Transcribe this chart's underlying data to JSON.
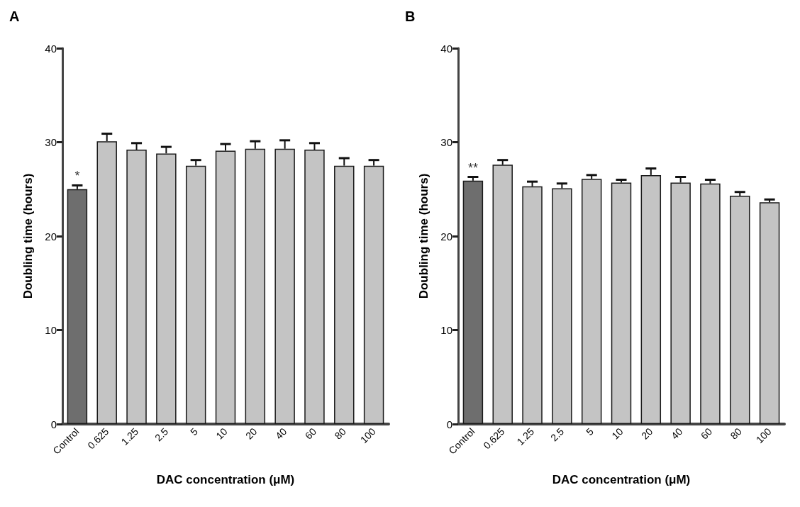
{
  "chart_data": [
    {
      "type": "bar",
      "title": "A",
      "xlabel": "DAC concentration (μM)",
      "ylabel": "Doubling time (hours)",
      "categories": [
        "Control",
        "0.625",
        "1.25",
        "2.5",
        "5",
        "10",
        "20",
        "40",
        "60",
        "80",
        "100"
      ],
      "values": [
        25.0,
        30.1,
        29.2,
        28.8,
        27.5,
        29.1,
        29.3,
        29.3,
        29.2,
        27.5,
        27.5
      ],
      "errors": [
        [
          25.0,
          25.4
        ],
        [
          30.1,
          30.9
        ],
        [
          29.2,
          29.9
        ],
        [
          28.8,
          29.5
        ],
        [
          27.5,
          28.1
        ],
        [
          29.1,
          29.8
        ],
        [
          29.3,
          30.1
        ],
        [
          29.3,
          30.2
        ],
        [
          29.2,
          29.9
        ],
        [
          27.5,
          28.3
        ],
        [
          27.5,
          28.1
        ]
      ],
      "colors": [
        "#6e6e6e",
        "#c4c4c4",
        "#c4c4c4",
        "#c4c4c4",
        "#c4c4c4",
        "#c4c4c4",
        "#c4c4c4",
        "#c4c4c4",
        "#c4c4c4",
        "#c4c4c4",
        "#c4c4c4"
      ],
      "ylim": [
        0,
        40
      ],
      "yticks": [
        0,
        10,
        20,
        30,
        40
      ],
      "grid": false,
      "annotations": [
        {
          "text": "*",
          "x": "Control",
          "y": 25.4
        }
      ]
    },
    {
      "type": "bar",
      "title": "B",
      "xlabel": "DAC concentration (μM)",
      "ylabel": "Doubling time (hours)",
      "categories": [
        "Control",
        "0.625",
        "1.25",
        "2.5",
        "5",
        "10",
        "20",
        "40",
        "60",
        "80",
        "100"
      ],
      "values": [
        25.9,
        27.6,
        25.3,
        25.1,
        26.1,
        25.7,
        26.5,
        25.7,
        25.6,
        24.3,
        23.6
      ],
      "errors": [
        [
          25.9,
          26.3
        ],
        [
          27.6,
          28.1
        ],
        [
          25.3,
          25.8
        ],
        [
          25.1,
          25.6
        ],
        [
          26.1,
          26.5
        ],
        [
          25.7,
          26.0
        ],
        [
          26.5,
          27.2
        ],
        [
          25.7,
          26.3
        ],
        [
          25.6,
          26.0
        ],
        [
          24.3,
          24.7
        ],
        [
          23.6,
          23.9
        ]
      ],
      "colors": [
        "#6e6e6e",
        "#c4c4c4",
        "#c4c4c4",
        "#c4c4c4",
        "#c4c4c4",
        "#c4c4c4",
        "#c4c4c4",
        "#c4c4c4",
        "#c4c4c4",
        "#c4c4c4",
        "#c4c4c4"
      ],
      "ylim": [
        0,
        40
      ],
      "yticks": [
        0,
        10,
        20,
        30,
        40
      ],
      "grid": false,
      "annotations": [
        {
          "text": "**",
          "x": "Control",
          "y": 26.3
        }
      ]
    }
  ]
}
